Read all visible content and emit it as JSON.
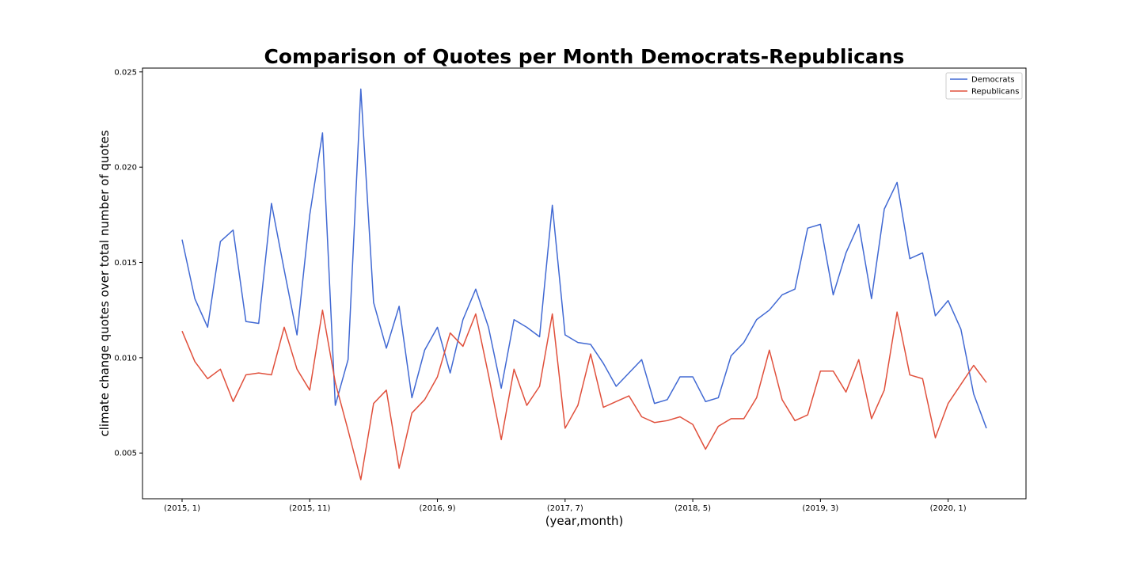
{
  "chart_data": {
    "type": "line",
    "title": "Comparison of Quotes per Month Democrats-Republicans",
    "xlabel": "(year,month)",
    "ylabel": "climate change quotes over total number of quotes",
    "ylim": [
      0.0026,
      0.0252
    ],
    "xlim": [
      -3.1,
      66.1
    ],
    "x_tick_labels": [
      {
        "index": 0,
        "label": "(2015, 1)"
      },
      {
        "index": 10,
        "label": "(2015, 11)"
      },
      {
        "index": 20,
        "label": "(2016, 9)"
      },
      {
        "index": 30,
        "label": "(2017, 7)"
      },
      {
        "index": 40,
        "label": "(2018, 5)"
      },
      {
        "index": 50,
        "label": "(2019, 3)"
      },
      {
        "index": 60,
        "label": "(2020, 1)"
      }
    ],
    "y_ticks": [
      {
        "value": 0.005,
        "label": "0.005"
      },
      {
        "value": 0.01,
        "label": "0.010"
      },
      {
        "value": 0.015,
        "label": "0.015"
      },
      {
        "value": 0.02,
        "label": "0.020"
      },
      {
        "value": 0.025,
        "label": "0.025"
      }
    ],
    "legend": {
      "placement": "top-right"
    },
    "grid": false,
    "series": [
      {
        "name": "Democrats",
        "color": "#4169d3",
        "values": [
          0.0162,
          0.0131,
          0.0116,
          0.0161,
          0.0167,
          0.0119,
          0.0118,
          0.0181,
          0.0146,
          0.0112,
          0.0175,
          0.0218,
          0.0075,
          0.0099,
          0.0241,
          0.0129,
          0.0105,
          0.0127,
          0.0079,
          0.0104,
          0.0116,
          0.0092,
          0.012,
          0.0136,
          0.0116,
          0.0084,
          0.012,
          0.0116,
          0.0111,
          0.018,
          0.0112,
          0.0108,
          0.0107,
          0.0097,
          0.0085,
          0.0092,
          0.0099,
          0.0076,
          0.0078,
          0.009,
          0.009,
          0.0077,
          0.0079,
          0.0101,
          0.0108,
          0.012,
          0.0125,
          0.0133,
          0.0136,
          0.0168,
          0.017,
          0.0133,
          0.0155,
          0.017,
          0.0131,
          0.0178,
          0.0192,
          0.0152,
          0.0155,
          0.0122,
          0.013,
          0.0115,
          0.0081,
          0.0063
        ]
      },
      {
        "name": "Republicans",
        "color": "#e0503c",
        "values": [
          0.0114,
          0.0098,
          0.0089,
          0.0094,
          0.0077,
          0.0091,
          0.0092,
          0.0091,
          0.0116,
          0.0094,
          0.0083,
          0.0125,
          0.0087,
          0.0062,
          0.0036,
          0.0076,
          0.0083,
          0.0042,
          0.0071,
          0.0078,
          0.009,
          0.0113,
          0.0106,
          0.0123,
          0.0091,
          0.0057,
          0.0094,
          0.0075,
          0.0085,
          0.0123,
          0.0063,
          0.0075,
          0.0102,
          0.0074,
          0.0077,
          0.008,
          0.0069,
          0.0066,
          0.0067,
          0.0069,
          0.0065,
          0.0052,
          0.0064,
          0.0068,
          0.0068,
          0.0079,
          0.0104,
          0.0078,
          0.0067,
          0.007,
          0.0093,
          0.0093,
          0.0082,
          0.0099,
          0.0068,
          0.0083,
          0.0124,
          0.0091,
          0.0089,
          0.0058,
          0.0076,
          0.0086,
          0.0096,
          0.0087
        ]
      }
    ]
  }
}
